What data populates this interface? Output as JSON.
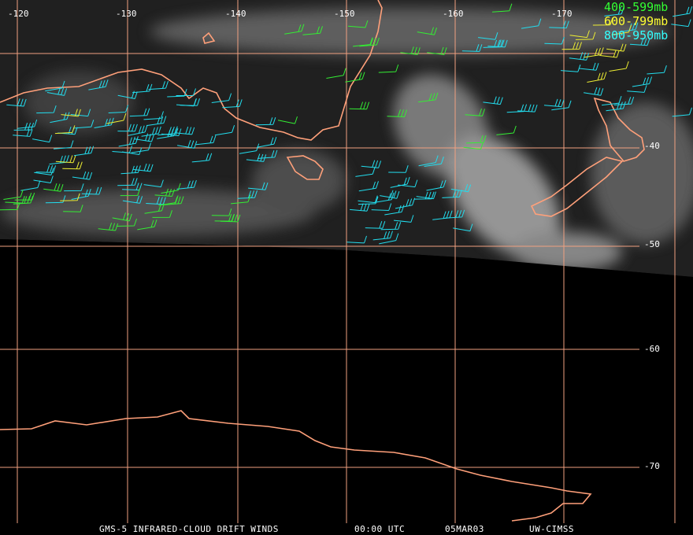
{
  "map": {
    "longitude_labels": [
      "-120",
      "-130",
      "-140",
      "-150",
      "-160",
      "-170"
    ],
    "latitude_labels": [
      "-40",
      "-50",
      "-60",
      "-70"
    ],
    "legend": [
      "400-599mb",
      "600-799mb",
      "800-950mb"
    ],
    "footer": [
      "GMS-5 INFRARED-CLOUD DRIFT WINDS",
      "00:00 UTC",
      "05MAR03",
      "UW-CIMSS"
    ]
  }
}
